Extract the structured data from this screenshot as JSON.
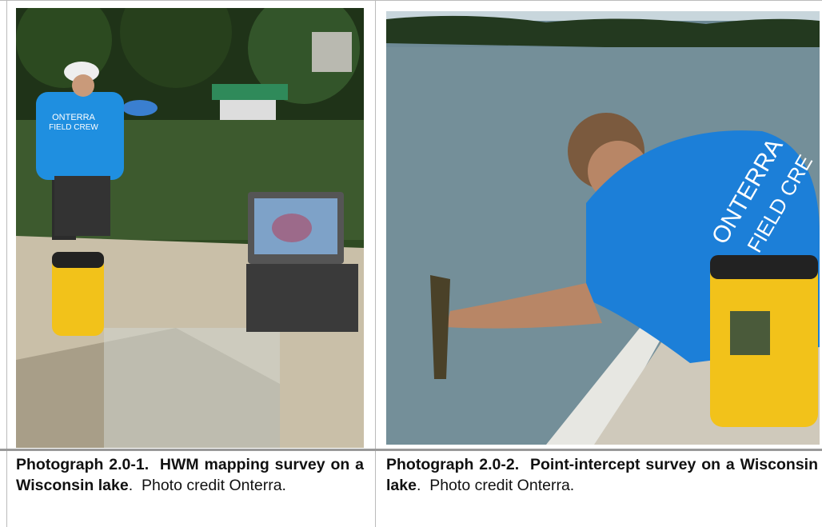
{
  "photos": [
    {
      "caption_bold": "Photograph 2.0-1.  HWM mapping survey on a Wisconsin lake",
      "caption_text": ".  Photo credit Onterra.",
      "shirt_text": [
        "ONTERRA",
        "FIELD CREW"
      ]
    },
    {
      "caption_bold": "Photograph 2.0-2.  Point-intercept survey on a Wisconsin lake",
      "caption_text": ".  Photo credit Onterra.",
      "shirt_text": [
        "ONTERRA",
        "FIELD CRE"
      ]
    }
  ]
}
